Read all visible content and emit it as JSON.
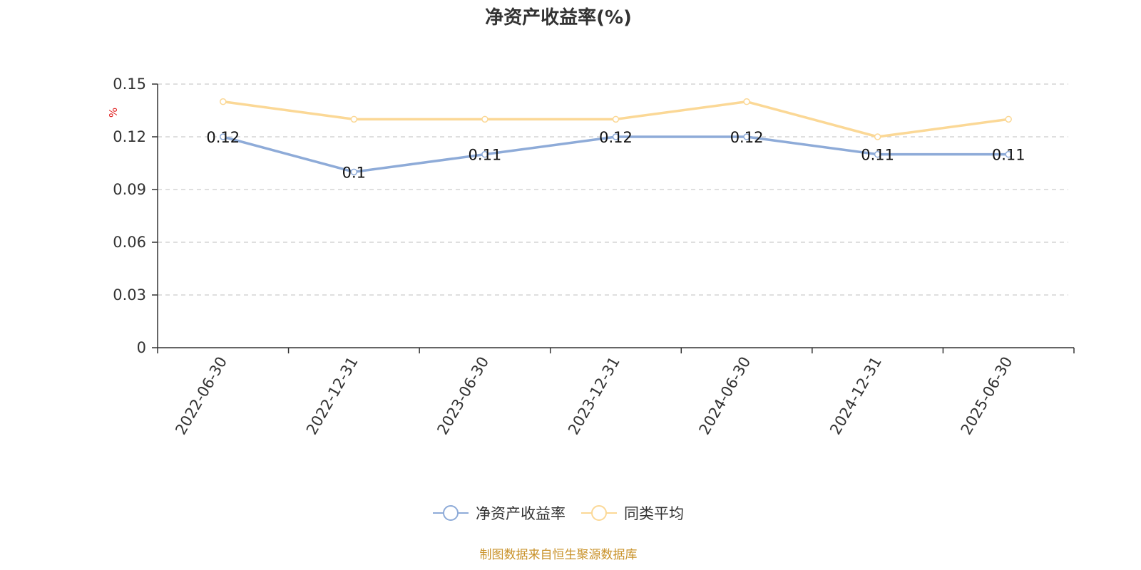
{
  "chart_data": {
    "type": "line",
    "title": "净资产收益率(%)",
    "ylabel": "%",
    "xlabel": "",
    "categories": [
      "2022-06-30",
      "2022-12-31",
      "2023-06-30",
      "2023-12-31",
      "2024-06-30",
      "2024-12-31",
      "2025-06-30"
    ],
    "series": [
      {
        "name": "净资产收益率",
        "color": "#8eabd8",
        "values": [
          0.12,
          0.1,
          0.11,
          0.12,
          0.12,
          0.11,
          0.11
        ],
        "labels": [
          "0.12",
          "0.1",
          "0.11",
          "0.12",
          "0.12",
          "0.11",
          "0.11"
        ]
      },
      {
        "name": "同类平均",
        "color": "#fbd896",
        "values": [
          0.14,
          0.13,
          0.13,
          0.13,
          0.14,
          0.12,
          0.13
        ]
      }
    ],
    "ylim": [
      0,
      0.15
    ],
    "yticks": [
      "0",
      "0.03",
      "0.06",
      "0.09",
      "0.12",
      "0.15"
    ],
    "grid": true,
    "legend_position": "bottom-center"
  },
  "source": "制图数据来自恒生聚源数据库"
}
